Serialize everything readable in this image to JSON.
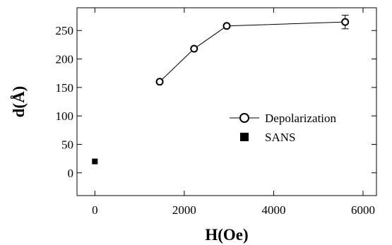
{
  "chart_data": {
    "type": "scatter",
    "xlabel": "H(Oe)",
    "ylabel": "d(Å)",
    "xlim": [
      -400,
      6300
    ],
    "ylim": [
      -40,
      290
    ],
    "x_ticks": [
      0,
      2000,
      4000,
      6000
    ],
    "y_ticks": [
      0,
      50,
      100,
      150,
      200,
      250
    ],
    "grid": false,
    "legend_position": "center-right",
    "series": [
      {
        "name": "Depolarization",
        "marker": "open-circle",
        "line": true,
        "color": "#000000",
        "x": [
          1450,
          2220,
          2950,
          5600
        ],
        "y": [
          160,
          218,
          258,
          265
        ],
        "yerr": [
          0,
          0,
          0,
          12
        ]
      },
      {
        "name": "SANS",
        "marker": "filled-square",
        "line": false,
        "color": "#000000",
        "x": [
          0
        ],
        "y": [
          20
        ]
      }
    ]
  }
}
